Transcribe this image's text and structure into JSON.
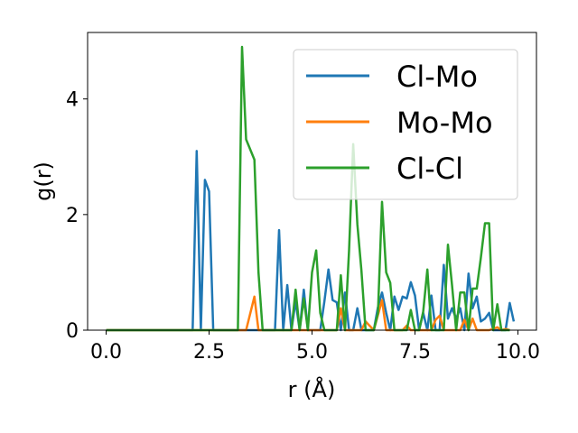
{
  "chart_data": {
    "type": "line",
    "xlabel": "r (Å)",
    "ylabel": "g(r)",
    "xlim": [
      -0.45,
      10.45
    ],
    "ylim": [
      0,
      5.15
    ],
    "xticks": [
      0.0,
      2.5,
      5.0,
      7.5,
      10.0
    ],
    "xtick_labels": [
      "0.0",
      "2.5",
      "5.0",
      "7.5",
      "10.0"
    ],
    "yticks": [
      0,
      2,
      4
    ],
    "ytick_labels": [
      "0",
      "2",
      "4"
    ],
    "grid": false,
    "legend_position": "top-right",
    "series": [
      {
        "name": "Cl-Mo",
        "color": "#1f77b4",
        "x": [
          0.0,
          2.1,
          2.2,
          2.3,
          2.4,
          2.5,
          2.6,
          3.8,
          4.1,
          4.2,
          4.3,
          4.4,
          4.5,
          4.6,
          4.7,
          4.8,
          4.9,
          5.0,
          5.1,
          5.2,
          5.3,
          5.4,
          5.5,
          5.6,
          5.7,
          5.8,
          5.9,
          6.0,
          6.1,
          6.2,
          6.3,
          6.4,
          6.5,
          6.6,
          6.7,
          6.8,
          6.9,
          7.0,
          7.1,
          7.2,
          7.3,
          7.4,
          7.5,
          7.6,
          7.7,
          7.8,
          7.9,
          8.0,
          8.1,
          8.2,
          8.3,
          8.4,
          8.5,
          8.6,
          8.7,
          8.8,
          8.9,
          9.0,
          9.1,
          9.2,
          9.3,
          9.4,
          9.5,
          9.6,
          9.7,
          9.8,
          9.9
        ],
        "y": [
          0.0,
          0.0,
          3.1,
          0.0,
          2.6,
          2.4,
          0.0,
          0.0,
          0.0,
          1.73,
          0.0,
          0.78,
          0.0,
          0.5,
          0.0,
          0.7,
          0.0,
          0.0,
          0.0,
          0.0,
          0.5,
          1.05,
          0.52,
          0.48,
          0.0,
          0.65,
          0.0,
          0.0,
          0.38,
          0.0,
          0.0,
          0.0,
          0.0,
          0.4,
          0.65,
          0.3,
          0.0,
          0.58,
          0.35,
          0.58,
          0.55,
          0.83,
          0.6,
          0.0,
          0.3,
          0.0,
          0.6,
          0.0,
          0.0,
          1.13,
          0.2,
          0.38,
          0.2,
          0.38,
          0.0,
          0.98,
          0.38,
          0.58,
          0.15,
          0.2,
          0.3,
          0.0,
          0.0,
          0.0,
          0.0,
          0.47,
          0.15
        ]
      },
      {
        "name": "Mo-Mo",
        "color": "#ff7f0e",
        "x": [
          0.0,
          3.4,
          3.6,
          3.7,
          5.6,
          5.7,
          5.8,
          6.2,
          6.3,
          6.5,
          6.7,
          6.8,
          7.2,
          7.3,
          7.4,
          7.9,
          8.0,
          8.1,
          8.2,
          8.6,
          8.7,
          8.8,
          8.9,
          9.0,
          9.3,
          9.5,
          9.6,
          9.7,
          9.8
        ],
        "y": [
          0.0,
          0.0,
          0.58,
          0.0,
          0.0,
          0.38,
          0.0,
          0.0,
          0.15,
          0.0,
          0.52,
          0.0,
          0.0,
          0.08,
          0.0,
          0.0,
          0.18,
          0.25,
          0.0,
          0.0,
          0.18,
          0.0,
          0.2,
          0.0,
          0.0,
          0.05,
          0.0,
          0.02,
          0.0
        ]
      },
      {
        "name": "Cl-Cl",
        "color": "#2ca02c",
        "x": [
          0.0,
          3.2,
          3.3,
          3.4,
          3.6,
          3.7,
          3.8,
          4.5,
          4.6,
          4.7,
          4.8,
          4.9,
          5.0,
          5.1,
          5.2,
          5.3,
          5.4,
          5.5,
          5.6,
          5.7,
          5.8,
          5.9,
          6.0,
          6.1,
          6.2,
          6.3,
          6.4,
          6.5,
          6.6,
          6.7,
          6.8,
          6.9,
          7.0,
          7.1,
          7.2,
          7.3,
          7.4,
          7.5,
          7.6,
          7.7,
          7.8,
          7.9,
          8.0,
          8.1,
          8.2,
          8.3,
          8.4,
          8.5,
          8.6,
          8.7,
          8.8,
          8.9,
          9.0,
          9.1,
          9.2,
          9.3,
          9.4,
          9.5,
          9.6,
          9.7,
          9.8
        ],
        "y": [
          0.0,
          0.0,
          4.9,
          3.3,
          2.95,
          1.0,
          0.0,
          0.0,
          0.7,
          0.0,
          0.55,
          0.0,
          1.0,
          1.38,
          0.3,
          0.0,
          0.0,
          0.0,
          0.0,
          0.95,
          0.0,
          1.38,
          3.22,
          1.83,
          1.03,
          0.0,
          0.0,
          0.0,
          0.3,
          2.22,
          1.0,
          0.82,
          0.0,
          0.0,
          0.0,
          0.0,
          0.35,
          0.0,
          0.0,
          0.32,
          1.05,
          0.0,
          0.0,
          0.0,
          0.0,
          1.48,
          0.78,
          0.0,
          0.65,
          0.65,
          0.0,
          0.72,
          0.72,
          1.25,
          1.85,
          1.85,
          0.0,
          0.45,
          0.0,
          0.0,
          0.0
        ]
      }
    ]
  }
}
